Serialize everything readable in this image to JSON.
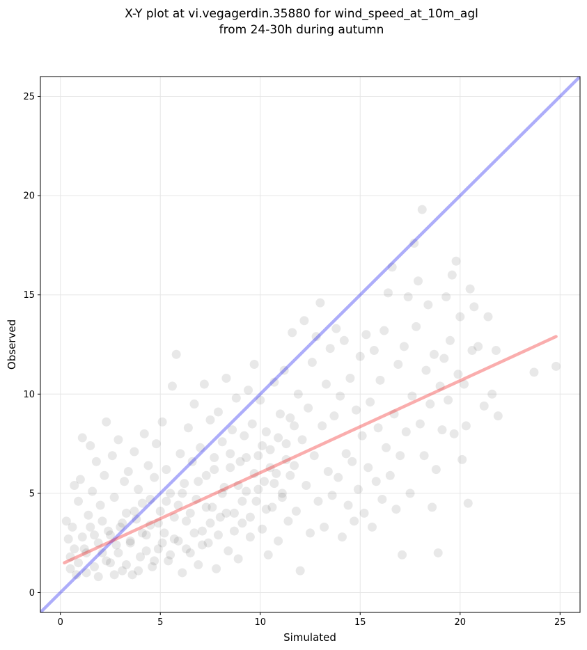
{
  "chart_data": {
    "type": "scatter",
    "title": "X-Y plot at vi.vegagerdin.35880 for wind_speed_at_10m_agl",
    "subtitle": "from 24-30h during autumn",
    "xlabel": "Simulated",
    "ylabel": "Observed",
    "xlim": [
      -1,
      26
    ],
    "ylim": [
      -1,
      26
    ],
    "xticks": [
      0,
      5,
      10,
      15,
      20,
      25
    ],
    "yticks": [
      0,
      5,
      10,
      15,
      20,
      25
    ],
    "grid": true,
    "legend": "none",
    "point_color": "#000000",
    "point_opacity": 0.09,
    "series": [
      {
        "points": [
          [
            0.3,
            3.6
          ],
          [
            0.4,
            2.7
          ],
          [
            0.5,
            1.2
          ],
          [
            0.6,
            3.3
          ],
          [
            0.7,
            5.4
          ],
          [
            0.8,
            0.9
          ],
          [
            0.9,
            4.6
          ],
          [
            1.0,
            5.7
          ],
          [
            1.1,
            7.8
          ],
          [
            1.2,
            2.2
          ],
          [
            1.3,
            1.0
          ],
          [
            1.4,
            3.9
          ],
          [
            1.5,
            7.4
          ],
          [
            1.6,
            5.1
          ],
          [
            1.7,
            2.9
          ],
          [
            1.8,
            6.6
          ],
          [
            1.9,
            0.8
          ],
          [
            2.0,
            4.4
          ],
          [
            2.1,
            2.0
          ],
          [
            2.2,
            5.9
          ],
          [
            2.3,
            8.6
          ],
          [
            2.4,
            3.1
          ],
          [
            2.5,
            1.5
          ],
          [
            2.6,
            6.9
          ],
          [
            2.7,
            4.8
          ],
          [
            2.8,
            2.4
          ],
          [
            2.9,
            7.7
          ],
          [
            3.0,
            3.3
          ],
          [
            3.1,
            1.1
          ],
          [
            3.2,
            5.6
          ],
          [
            3.3,
            4.0
          ],
          [
            3.4,
            6.1
          ],
          [
            3.5,
            2.6
          ],
          [
            3.6,
            0.9
          ],
          [
            3.7,
            7.1
          ],
          [
            3.8,
            3.7
          ],
          [
            3.9,
            5.2
          ],
          [
            4.0,
            1.8
          ],
          [
            4.1,
            4.5
          ],
          [
            4.2,
            8.0
          ],
          [
            4.3,
            2.9
          ],
          [
            4.4,
            6.4
          ],
          [
            4.5,
            3.4
          ],
          [
            4.6,
            1.3
          ],
          [
            4.7,
            5.8
          ],
          [
            4.8,
            7.5
          ],
          [
            4.9,
            2.2
          ],
          [
            5.0,
            4.1
          ],
          [
            5.1,
            8.6
          ],
          [
            5.2,
            3.0
          ],
          [
            5.3,
            6.2
          ],
          [
            5.4,
            1.6
          ],
          [
            5.5,
            5.0
          ],
          [
            5.6,
            10.4
          ],
          [
            5.7,
            2.7
          ],
          [
            5.8,
            12.0
          ],
          [
            5.9,
            4.4
          ],
          [
            6.0,
            7.0
          ],
          [
            6.1,
            1.0
          ],
          [
            6.2,
            5.5
          ],
          [
            6.3,
            3.6
          ],
          [
            6.4,
            8.3
          ],
          [
            6.5,
            2.0
          ],
          [
            6.6,
            6.6
          ],
          [
            6.7,
            9.5
          ],
          [
            6.8,
            4.7
          ],
          [
            6.9,
            1.4
          ],
          [
            7.0,
            7.3
          ],
          [
            7.1,
            3.1
          ],
          [
            7.2,
            10.5
          ],
          [
            7.3,
            5.9
          ],
          [
            7.4,
            2.5
          ],
          [
            7.5,
            8.7
          ],
          [
            7.6,
            4.3
          ],
          [
            7.7,
            6.8
          ],
          [
            7.8,
            1.2
          ],
          [
            7.9,
            9.1
          ],
          [
            8.0,
            3.8
          ],
          [
            8.1,
            7.6
          ],
          [
            8.2,
            5.3
          ],
          [
            8.3,
            10.8
          ],
          [
            8.4,
            2.1
          ],
          [
            8.5,
            6.3
          ],
          [
            8.6,
            8.2
          ],
          [
            8.7,
            4.0
          ],
          [
            8.8,
            9.8
          ],
          [
            8.9,
            1.7
          ],
          [
            9.0,
            6.6
          ],
          [
            9.1,
            3.5
          ],
          [
            9.2,
            7.9
          ],
          [
            9.3,
            5.1
          ],
          [
            9.4,
            10.2
          ],
          [
            9.5,
            2.8
          ],
          [
            9.6,
            8.5
          ],
          [
            9.7,
            11.5
          ],
          [
            9.8,
            4.6
          ],
          [
            9.9,
            6.9
          ],
          [
            10.0,
            9.7
          ],
          [
            10.1,
            3.2
          ],
          [
            10.2,
            5.6
          ],
          [
            10.3,
            8.1
          ],
          [
            10.4,
            1.9
          ],
          [
            10.5,
            7.2
          ],
          [
            10.6,
            4.3
          ],
          [
            10.7,
            10.6
          ],
          [
            10.8,
            6.0
          ],
          [
            10.9,
            2.6
          ],
          [
            11.0,
            9.0
          ],
          [
            11.1,
            5.0
          ],
          [
            11.2,
            11.2
          ],
          [
            11.3,
            7.5
          ],
          [
            11.4,
            3.6
          ],
          [
            11.5,
            8.8
          ],
          [
            11.6,
            13.1
          ],
          [
            11.7,
            6.4
          ],
          [
            11.8,
            4.1
          ],
          [
            11.9,
            10.0
          ],
          [
            12.0,
            1.1
          ],
          [
            12.1,
            7.7
          ],
          [
            12.2,
            13.7
          ],
          [
            12.3,
            5.4
          ],
          [
            12.4,
            9.3
          ],
          [
            12.5,
            3.0
          ],
          [
            12.6,
            11.6
          ],
          [
            12.7,
            6.9
          ],
          [
            12.8,
            12.9
          ],
          [
            12.9,
            4.6
          ],
          [
            13.0,
            14.6
          ],
          [
            13.1,
            8.4
          ],
          [
            13.2,
            3.3
          ],
          [
            13.3,
            10.5
          ],
          [
            13.4,
            6.1
          ],
          [
            13.5,
            12.3
          ],
          [
            13.6,
            4.9
          ],
          [
            13.7,
            8.9
          ],
          [
            13.8,
            13.3
          ],
          [
            13.9,
            5.8
          ],
          [
            14.0,
            9.9
          ],
          [
            14.1,
            2.8
          ],
          [
            14.2,
            12.7
          ],
          [
            14.3,
            7.0
          ],
          [
            14.4,
            4.4
          ],
          [
            14.5,
            10.8
          ],
          [
            14.6,
            6.6
          ],
          [
            14.7,
            3.6
          ],
          [
            14.8,
            9.2
          ],
          [
            14.9,
            5.2
          ],
          [
            15.0,
            11.9
          ],
          [
            15.1,
            7.9
          ],
          [
            15.2,
            4.0
          ],
          [
            15.3,
            13.0
          ],
          [
            15.4,
            6.3
          ],
          [
            15.5,
            9.6
          ],
          [
            15.6,
            3.3
          ],
          [
            15.7,
            12.2
          ],
          [
            15.8,
            5.6
          ],
          [
            15.9,
            8.3
          ],
          [
            16.0,
            10.7
          ],
          [
            16.1,
            4.7
          ],
          [
            16.2,
            13.2
          ],
          [
            16.3,
            7.3
          ],
          [
            16.4,
            15.1
          ],
          [
            16.5,
            5.9
          ],
          [
            16.6,
            16.4
          ],
          [
            16.7,
            9.0
          ],
          [
            16.8,
            4.2
          ],
          [
            16.9,
            11.5
          ],
          [
            17.0,
            6.9
          ],
          [
            17.1,
            1.9
          ],
          [
            17.2,
            12.4
          ],
          [
            17.3,
            8.1
          ],
          [
            17.4,
            14.9
          ],
          [
            17.5,
            5.0
          ],
          [
            17.6,
            9.9
          ],
          [
            17.7,
            17.6
          ],
          [
            17.8,
            13.4
          ],
          [
            17.9,
            15.7
          ],
          [
            18.0,
            8.5
          ],
          [
            18.1,
            19.3
          ],
          [
            18.2,
            6.9
          ],
          [
            18.3,
            11.2
          ],
          [
            18.4,
            14.5
          ],
          [
            18.5,
            9.5
          ],
          [
            18.6,
            4.3
          ],
          [
            18.7,
            12.0
          ],
          [
            18.8,
            6.2
          ],
          [
            18.9,
            2.0
          ],
          [
            19.0,
            10.4
          ],
          [
            19.1,
            8.2
          ],
          [
            19.2,
            11.8
          ],
          [
            19.3,
            14.9
          ],
          [
            19.4,
            9.7
          ],
          [
            19.5,
            12.7
          ],
          [
            19.6,
            16.0
          ],
          [
            19.7,
            8.0
          ],
          [
            19.8,
            16.7
          ],
          [
            19.9,
            11.0
          ],
          [
            20.0,
            13.9
          ],
          [
            20.1,
            6.7
          ],
          [
            20.2,
            10.5
          ],
          [
            20.3,
            8.4
          ],
          [
            20.4,
            4.5
          ],
          [
            20.5,
            15.3
          ],
          [
            20.6,
            12.2
          ],
          [
            20.7,
            14.4
          ],
          [
            20.9,
            12.4
          ],
          [
            21.2,
            9.4
          ],
          [
            21.4,
            13.9
          ],
          [
            21.6,
            10.0
          ],
          [
            21.8,
            12.2
          ],
          [
            21.9,
            8.9
          ],
          [
            23.7,
            11.1
          ],
          [
            24.8,
            11.4
          ],
          [
            0.5,
            1.8
          ],
          [
            0.7,
            2.2
          ],
          [
            0.9,
            1.5
          ],
          [
            1.1,
            2.8
          ],
          [
            1.3,
            2.0
          ],
          [
            1.5,
            3.3
          ],
          [
            1.7,
            1.3
          ],
          [
            1.9,
            2.5
          ],
          [
            2.1,
            3.6
          ],
          [
            2.3,
            1.6
          ],
          [
            2.5,
            2.9
          ],
          [
            2.7,
            0.9
          ],
          [
            2.9,
            2.0
          ],
          [
            3.1,
            3.5
          ],
          [
            3.3,
            1.4
          ],
          [
            3.5,
            2.5
          ],
          [
            3.7,
            4.1
          ],
          [
            3.9,
            1.1
          ],
          [
            4.1,
            3.0
          ],
          [
            4.3,
            2.1
          ],
          [
            4.5,
            4.7
          ],
          [
            4.7,
            1.6
          ],
          [
            4.9,
            3.5
          ],
          [
            5.1,
            2.5
          ],
          [
            5.3,
            4.6
          ],
          [
            5.5,
            1.9
          ],
          [
            5.7,
            3.8
          ],
          [
            5.9,
            2.6
          ],
          [
            6.1,
            5.0
          ],
          [
            6.3,
            2.2
          ],
          [
            6.5,
            4.0
          ],
          [
            6.7,
            3.0
          ],
          [
            6.9,
            5.6
          ],
          [
            7.1,
            2.4
          ],
          [
            7.3,
            4.3
          ],
          [
            7.5,
            3.5
          ],
          [
            7.7,
            6.2
          ],
          [
            7.9,
            2.9
          ],
          [
            8.1,
            5.0
          ],
          [
            8.3,
            4.0
          ],
          [
            8.5,
            7.0
          ],
          [
            8.7,
            3.1
          ],
          [
            8.9,
            5.4
          ],
          [
            9.1,
            4.6
          ],
          [
            9.3,
            6.8
          ],
          [
            9.5,
            3.8
          ],
          [
            9.7,
            6.0
          ],
          [
            9.9,
            5.2
          ],
          [
            10.1,
            7.4
          ],
          [
            10.3,
            4.2
          ],
          [
            10.5,
            6.3
          ],
          [
            10.7,
            5.5
          ],
          [
            10.9,
            7.8
          ],
          [
            11.1,
            4.8
          ],
          [
            11.3,
            6.7
          ],
          [
            11.5,
            5.9
          ],
          [
            11.7,
            8.4
          ]
        ]
      }
    ],
    "reference_lines": [
      {
        "kind": "identity",
        "color": "#0000ee",
        "opacity": 0.32,
        "points": [
          [
            -1,
            -1
          ],
          [
            26,
            26
          ]
        ]
      },
      {
        "kind": "fit",
        "color": "#ee0000",
        "opacity": 0.32,
        "points": [
          [
            0.2,
            1.5
          ],
          [
            24.8,
            12.9
          ]
        ]
      }
    ]
  }
}
